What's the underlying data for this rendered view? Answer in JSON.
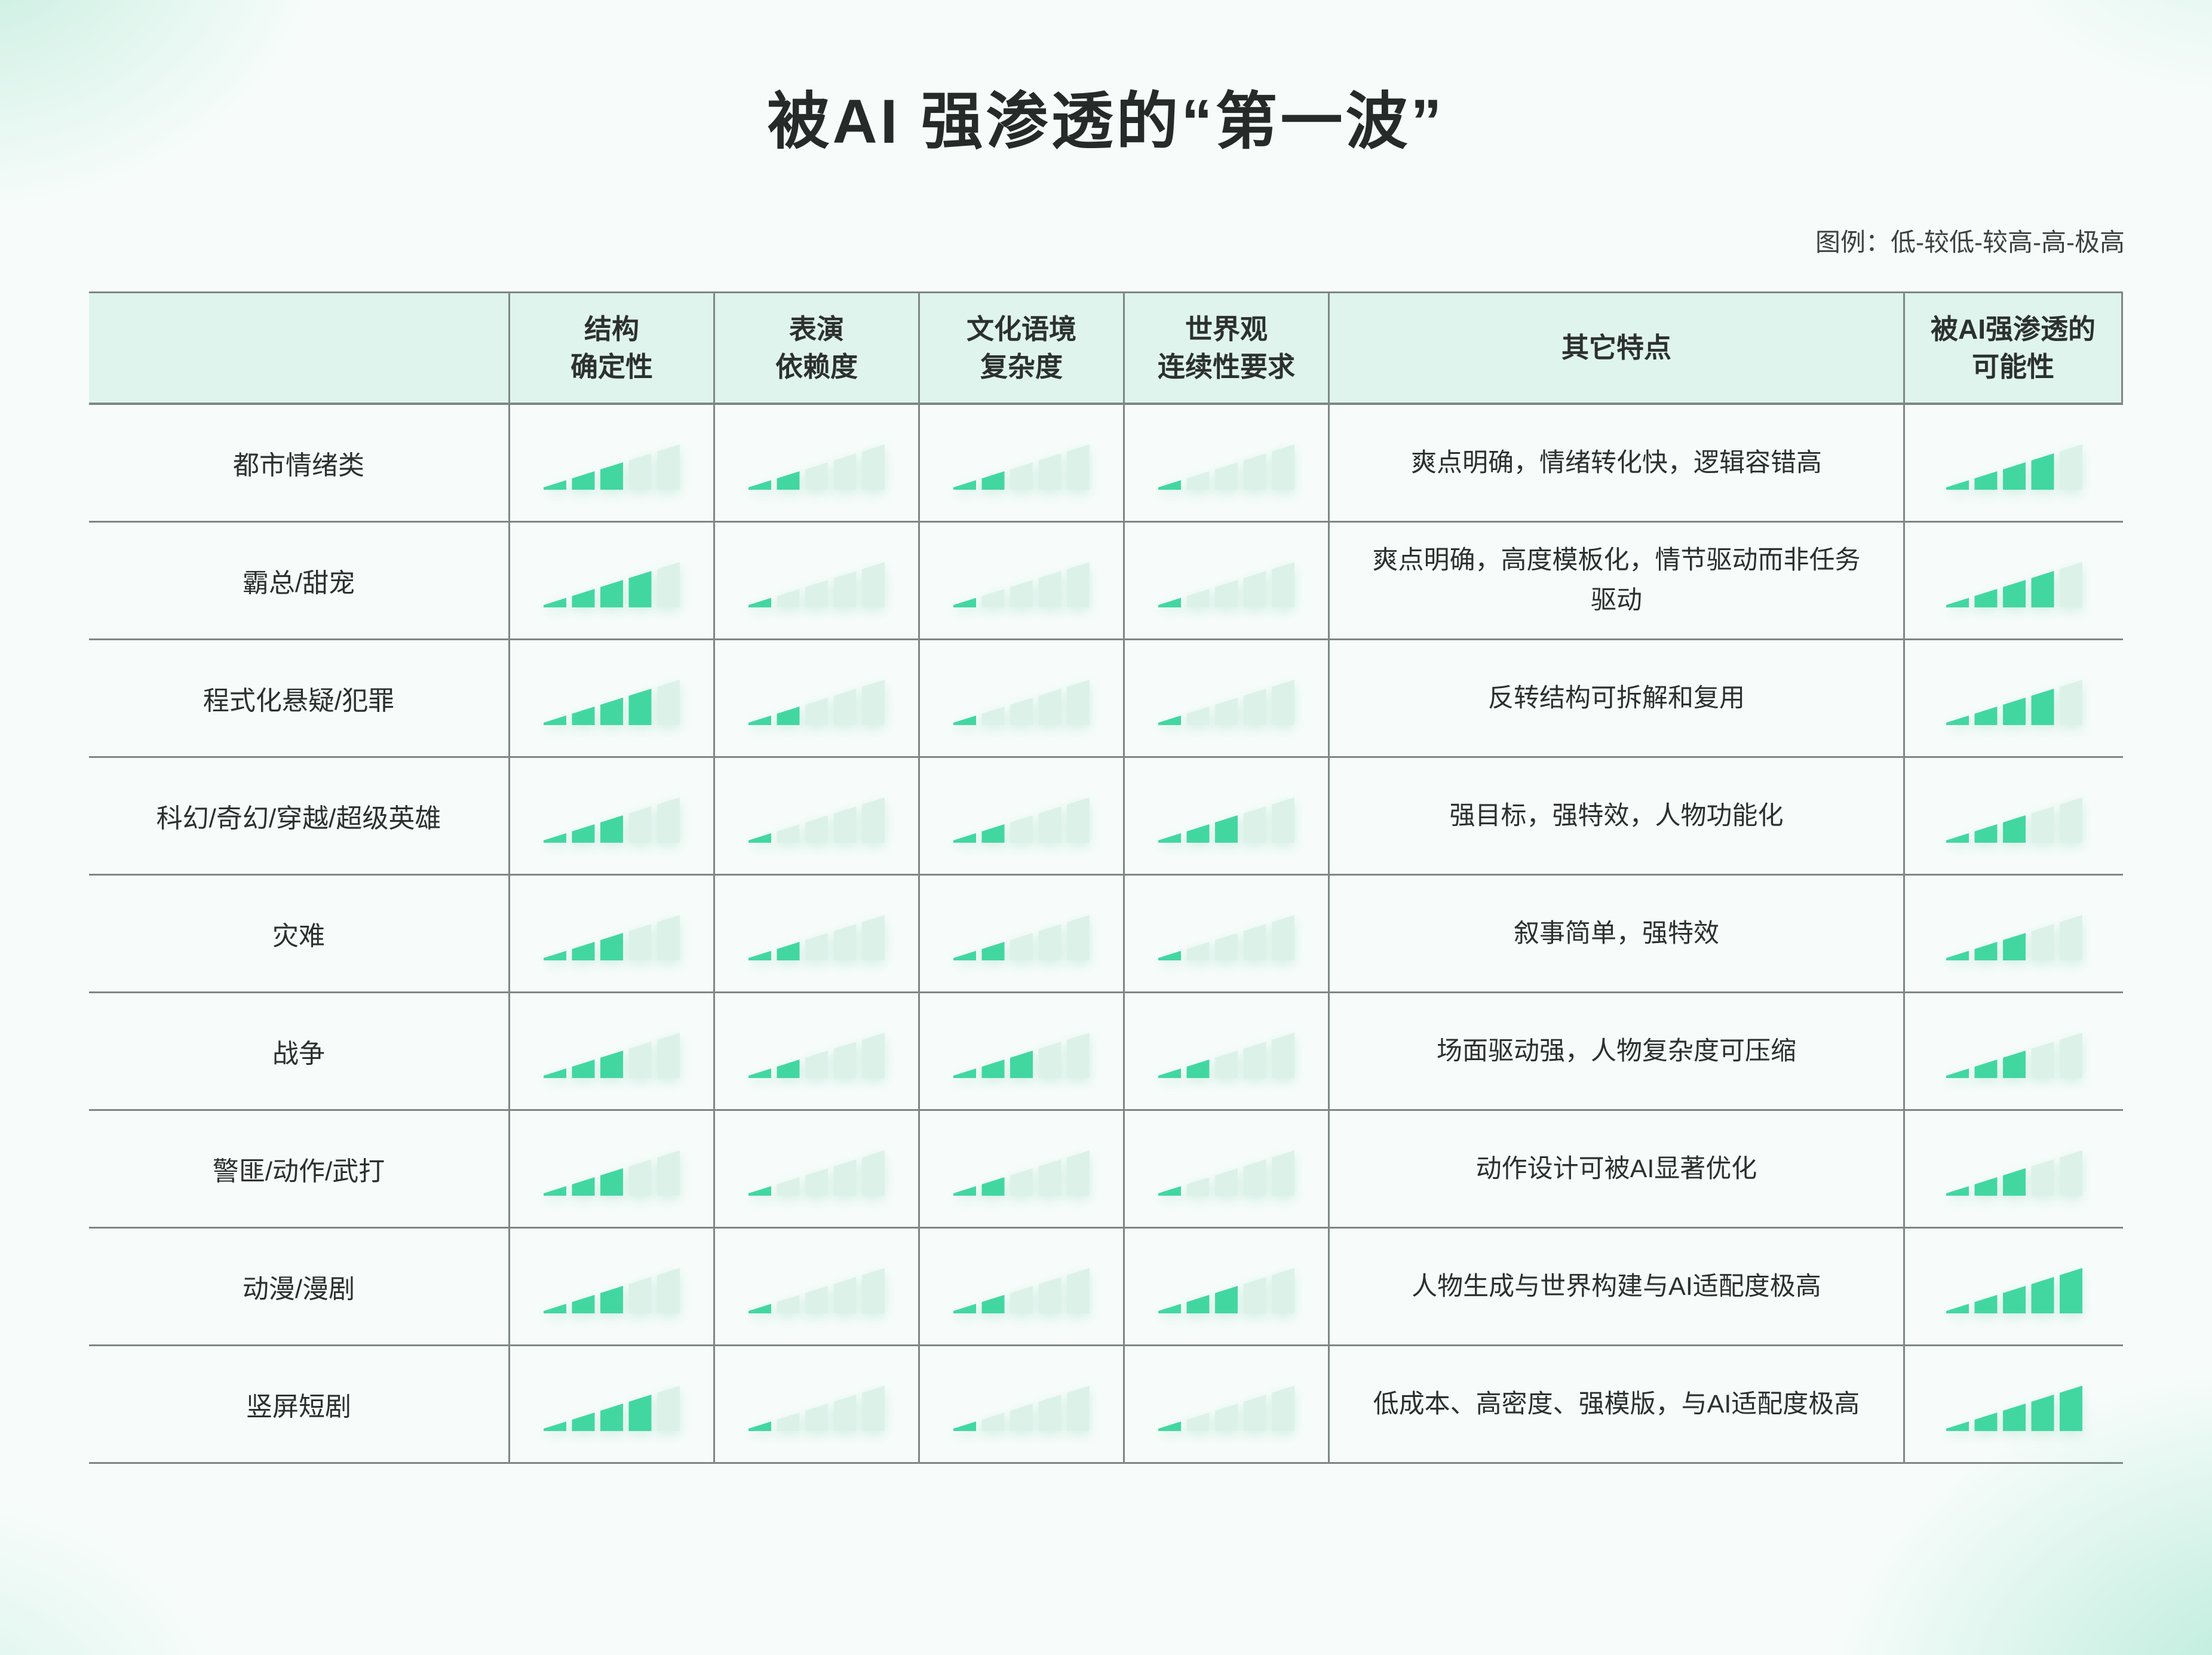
{
  "title": "被AI 强渗透的“第一波”",
  "legend": "图例：低-较低-较高-高-极高",
  "rating_scale": {
    "min": 1,
    "max": 5,
    "levels": [
      "低",
      "较低",
      "较高",
      "高",
      "极高"
    ]
  },
  "colors": {
    "bar_filled": "#42d7a1",
    "bar_empty": "#dcf2e9",
    "header_bg": "#dff4ec",
    "grid_line": "#7d8783",
    "text": "#2c312f"
  },
  "chart_data": {
    "type": "table",
    "title": "被AI 强渗透的“第一波”",
    "rating_levels": [
      "低",
      "较低",
      "较高",
      "高",
      "极高"
    ],
    "columns": [
      {
        "key": "genre",
        "type": "label",
        "lines": [
          ""
        ]
      },
      {
        "key": "structure_certainty",
        "type": "rating",
        "lines": [
          "结构",
          "确定性"
        ]
      },
      {
        "key": "performance_dependency",
        "type": "rating",
        "lines": [
          "表演",
          "依赖度"
        ]
      },
      {
        "key": "cultural_context_complexity",
        "type": "rating",
        "lines": [
          "文化语境",
          "复杂度"
        ]
      },
      {
        "key": "worldview_continuity",
        "type": "rating",
        "lines": [
          "世界观",
          "连续性要求"
        ]
      },
      {
        "key": "other_traits",
        "type": "text",
        "lines": [
          "其它特点"
        ]
      },
      {
        "key": "ai_penetration",
        "type": "rating",
        "lines": [
          "被AI强渗透的",
          "可能性"
        ]
      }
    ],
    "rows": [
      {
        "genre": "都市情绪类",
        "ratings": {
          "structure_certainty": 3,
          "performance_dependency": 2,
          "cultural_context_complexity": 2,
          "worldview_continuity": 1,
          "ai_penetration": 4
        },
        "other_traits": "爽点明确，情绪转化快，逻辑容错高"
      },
      {
        "genre": "霸总/甜宠",
        "ratings": {
          "structure_certainty": 4,
          "performance_dependency": 1,
          "cultural_context_complexity": 1,
          "worldview_continuity": 1,
          "ai_penetration": 4
        },
        "other_traits": "爽点明确，高度模板化，情节驱动而非任务驱动"
      },
      {
        "genre": "程式化悬疑/犯罪",
        "ratings": {
          "structure_certainty": 4,
          "performance_dependency": 2,
          "cultural_context_complexity": 1,
          "worldview_continuity": 1,
          "ai_penetration": 4
        },
        "other_traits": "反转结构可拆解和复用"
      },
      {
        "genre": "科幻/奇幻/穿越/超级英雄",
        "ratings": {
          "structure_certainty": 3,
          "performance_dependency": 1,
          "cultural_context_complexity": 2,
          "worldview_continuity": 3,
          "ai_penetration": 3
        },
        "other_traits": "强目标，强特效，人物功能化"
      },
      {
        "genre": "灾难",
        "ratings": {
          "structure_certainty": 3,
          "performance_dependency": 2,
          "cultural_context_complexity": 2,
          "worldview_continuity": 1,
          "ai_penetration": 3
        },
        "other_traits": "叙事简单，强特效"
      },
      {
        "genre": "战争",
        "ratings": {
          "structure_certainty": 3,
          "performance_dependency": 2,
          "cultural_context_complexity": 3,
          "worldview_continuity": 2,
          "ai_penetration": 3
        },
        "other_traits": "场面驱动强，人物复杂度可压缩"
      },
      {
        "genre": "警匪/动作/武打",
        "ratings": {
          "structure_certainty": 3,
          "performance_dependency": 1,
          "cultural_context_complexity": 2,
          "worldview_continuity": 1,
          "ai_penetration": 3
        },
        "other_traits": "动作设计可被AI显著优化"
      },
      {
        "genre": "动漫/漫剧",
        "ratings": {
          "structure_certainty": 3,
          "performance_dependency": 1,
          "cultural_context_complexity": 2,
          "worldview_continuity": 3,
          "ai_penetration": 5
        },
        "other_traits": "人物生成与世界构建与AI适配度极高"
      },
      {
        "genre": "竖屏短剧",
        "ratings": {
          "structure_certainty": 4,
          "performance_dependency": 1,
          "cultural_context_complexity": 1,
          "worldview_continuity": 1,
          "ai_penetration": 5
        },
        "other_traits": "低成本、高密度、强模版，与AI适配度极高"
      }
    ]
  }
}
